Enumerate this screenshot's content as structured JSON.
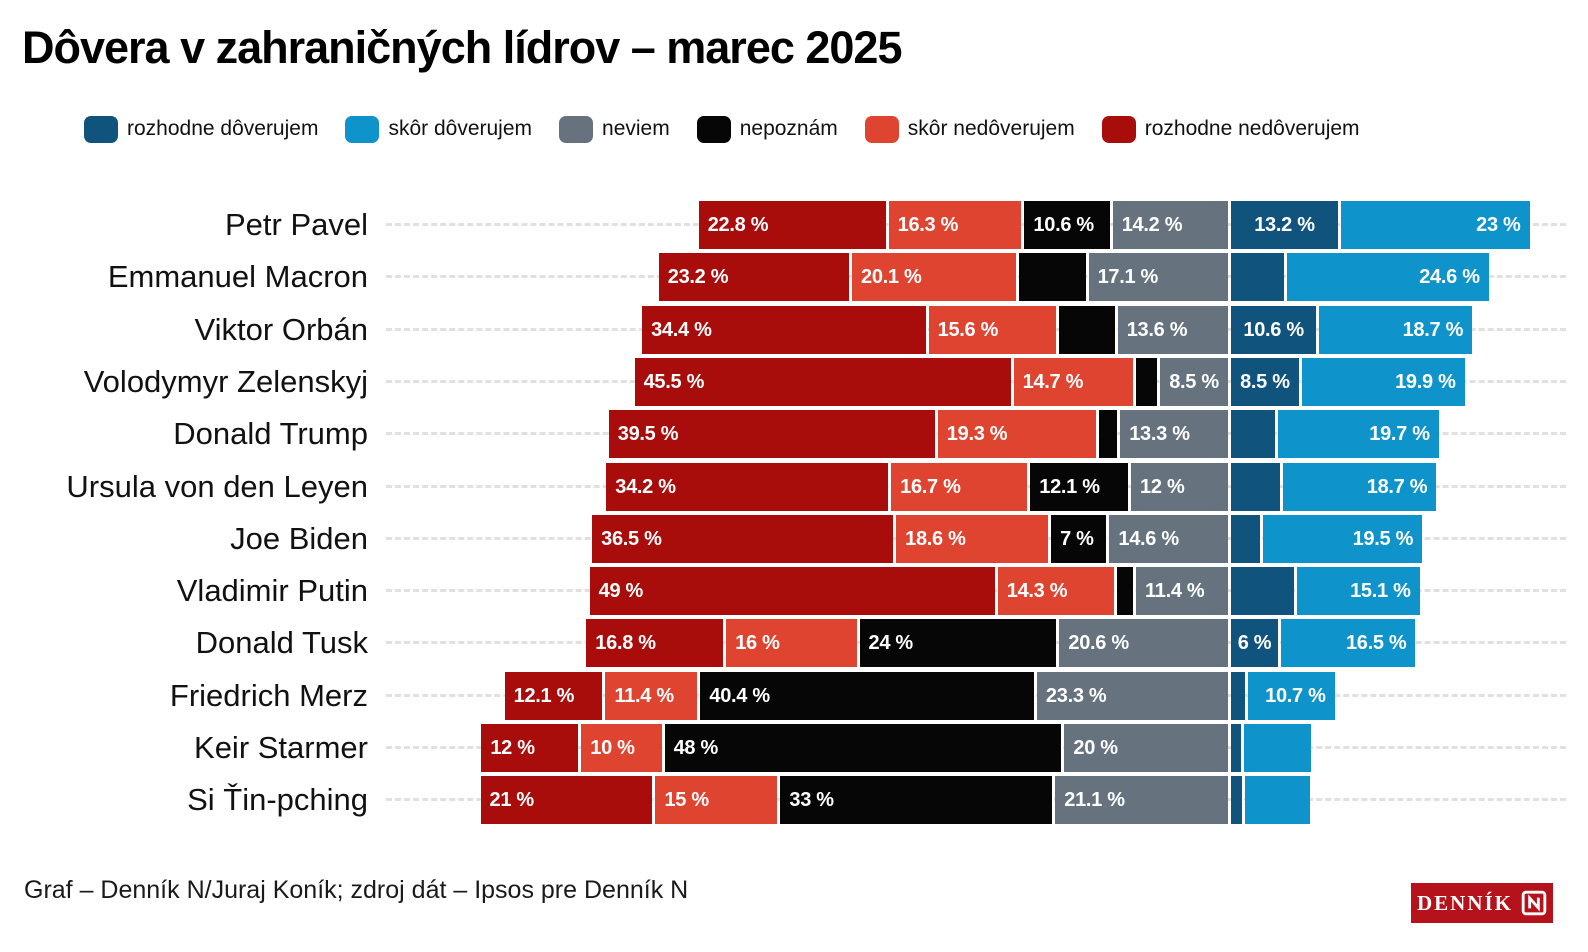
{
  "title": "Dôvera v zahraničných lídrov – marec 2025",
  "footer": {
    "credit": "Graf – Denník N/Juraj Koník; zdroj dát – Ipsos pre Denník N",
    "logo_text": "DENNÍK",
    "logo_bg": "#b5121b"
  },
  "chart_data": {
    "type": "bar",
    "variant": "horizontal-diverging-stacked",
    "unit": "%",
    "title": "Dôvera v zahraničných lídrov – marec 2025",
    "legend_position": "top",
    "pivot": "bars aligned on boundary between 'neviem' and 'rozhodne dôverujem'",
    "grid": "horizontal dashed row guides",
    "legend": [
      {
        "key": "rozhodne_doverujem",
        "label": "rozhodne dôverujem",
        "color": "#10537c"
      },
      {
        "key": "skor_doverujem",
        "label": "skôr dôverujem",
        "color": "#0e93cb"
      },
      {
        "key": "neviem",
        "label": "neviem",
        "color": "#66727e"
      },
      {
        "key": "nepoznam",
        "label": "nepoznám",
        "color": "#060606"
      },
      {
        "key": "skor_nedoverujem",
        "label": "skôr nedôverujem",
        "color": "#df4430"
      },
      {
        "key": "rozhodne_nedoverujem",
        "label": "rozhodne nedôverujem",
        "color": "#a80d0c"
      }
    ],
    "segment_order": [
      "rozhodne_nedoverujem",
      "skor_nedoverujem",
      "nepoznam",
      "neviem",
      "rozhodne_doverujem",
      "skor_doverujem"
    ],
    "rows": [
      {
        "name": "Petr Pavel",
        "segments": [
          {
            "key": "rozhodne_nedoverujem",
            "value": 22.8,
            "label": "22.8 %"
          },
          {
            "key": "skor_nedoverujem",
            "value": 16.3,
            "label": "16.3 %"
          },
          {
            "key": "nepoznam",
            "value": 10.6,
            "label": "10.6 %"
          },
          {
            "key": "neviem",
            "value": 14.2,
            "label": "14.2 %"
          },
          {
            "key": "rozhodne_doverujem",
            "value": 13.2,
            "label": "13.2 %"
          },
          {
            "key": "skor_doverujem",
            "value": 23,
            "label": "23 %"
          }
        ]
      },
      {
        "name": "Emmanuel Macron",
        "segments": [
          {
            "key": "rozhodne_nedoverujem",
            "value": 23.2,
            "label": "23.2 %"
          },
          {
            "key": "skor_nedoverujem",
            "value": 20.1,
            "label": "20.1 %"
          },
          {
            "key": "nepoznam",
            "value": 8.3,
            "label": "",
            "estimated": true
          },
          {
            "key": "neviem",
            "value": 17.1,
            "label": "17.1 %"
          },
          {
            "key": "rozhodne_doverujem",
            "value": 6.7,
            "label": "",
            "estimated": true
          },
          {
            "key": "skor_doverujem",
            "value": 24.6,
            "label": "24.6 %"
          }
        ]
      },
      {
        "name": "Viktor Orbán",
        "segments": [
          {
            "key": "rozhodne_nedoverujem",
            "value": 34.4,
            "label": "34.4 %"
          },
          {
            "key": "skor_nedoverujem",
            "value": 15.6,
            "label": "15.6 %"
          },
          {
            "key": "nepoznam",
            "value": 7.1,
            "label": "",
            "estimated": true
          },
          {
            "key": "neviem",
            "value": 13.6,
            "label": "13.6 %"
          },
          {
            "key": "rozhodne_doverujem",
            "value": 10.6,
            "label": "10.6 %"
          },
          {
            "key": "skor_doverujem",
            "value": 18.7,
            "label": "18.7 %"
          }
        ]
      },
      {
        "name": "Volodymyr Zelenskyj",
        "segments": [
          {
            "key": "rozhodne_nedoverujem",
            "value": 45.5,
            "label": "45.5 %"
          },
          {
            "key": "skor_nedoverujem",
            "value": 14.7,
            "label": "14.7 %"
          },
          {
            "key": "nepoznam",
            "value": 2.9,
            "label": "",
            "estimated": true
          },
          {
            "key": "neviem",
            "value": 8.5,
            "label": "8.5 %"
          },
          {
            "key": "rozhodne_doverujem",
            "value": 8.5,
            "label": "8.5 %"
          },
          {
            "key": "skor_doverujem",
            "value": 19.9,
            "label": "19.9 %"
          }
        ]
      },
      {
        "name": "Donald Trump",
        "segments": [
          {
            "key": "rozhodne_nedoverujem",
            "value": 39.5,
            "label": "39.5 %"
          },
          {
            "key": "skor_nedoverujem",
            "value": 19.3,
            "label": "19.3 %"
          },
          {
            "key": "nepoznam",
            "value": 2.6,
            "label": "",
            "estimated": true
          },
          {
            "key": "neviem",
            "value": 13.3,
            "label": "13.3 %"
          },
          {
            "key": "rozhodne_doverujem",
            "value": 5.6,
            "label": "",
            "estimated": true
          },
          {
            "key": "skor_doverujem",
            "value": 19.7,
            "label": "19.7 %"
          }
        ]
      },
      {
        "name": "Ursula von den Leyen",
        "segments": [
          {
            "key": "rozhodne_nedoverujem",
            "value": 34.2,
            "label": "34.2 %"
          },
          {
            "key": "skor_nedoverujem",
            "value": 16.7,
            "label": "16.7 %"
          },
          {
            "key": "nepoznam",
            "value": 12.1,
            "label": "12.1 %"
          },
          {
            "key": "neviem",
            "value": 12,
            "label": "12 %"
          },
          {
            "key": "rozhodne_doverujem",
            "value": 6.3,
            "label": "",
            "estimated": true
          },
          {
            "key": "skor_doverujem",
            "value": 18.7,
            "label": "18.7 %"
          }
        ]
      },
      {
        "name": "Joe Biden",
        "segments": [
          {
            "key": "rozhodne_nedoverujem",
            "value": 36.5,
            "label": "36.5 %"
          },
          {
            "key": "skor_nedoverujem",
            "value": 18.6,
            "label": "18.6 %"
          },
          {
            "key": "nepoznam",
            "value": 7,
            "label": "7 %"
          },
          {
            "key": "neviem",
            "value": 14.6,
            "label": "14.6 %"
          },
          {
            "key": "rozhodne_doverujem",
            "value": 3.8,
            "label": "",
            "estimated": true
          },
          {
            "key": "skor_doverujem",
            "value": 19.5,
            "label": "19.5 %"
          }
        ]
      },
      {
        "name": "Vladimir Putin",
        "segments": [
          {
            "key": "rozhodne_nedoverujem",
            "value": 49,
            "label": "49 %"
          },
          {
            "key": "skor_nedoverujem",
            "value": 14.3,
            "label": "14.3 %"
          },
          {
            "key": "nepoznam",
            "value": 2.3,
            "label": "",
            "estimated": true
          },
          {
            "key": "neviem",
            "value": 11.4,
            "label": "11.4 %"
          },
          {
            "key": "rozhodne_doverujem",
            "value": 7.9,
            "label": "",
            "estimated": true
          },
          {
            "key": "skor_doverujem",
            "value": 15.1,
            "label": "15.1 %"
          }
        ]
      },
      {
        "name": "Donald Tusk",
        "segments": [
          {
            "key": "rozhodne_nedoverujem",
            "value": 16.8,
            "label": "16.8 %"
          },
          {
            "key": "skor_nedoverujem",
            "value": 16,
            "label": "16 %"
          },
          {
            "key": "nepoznam",
            "value": 24,
            "label": "24 %"
          },
          {
            "key": "neviem",
            "value": 20.6,
            "label": "20.6 %"
          },
          {
            "key": "rozhodne_doverujem",
            "value": 6,
            "label": "6 %"
          },
          {
            "key": "skor_doverujem",
            "value": 16.5,
            "label": "16.5 %"
          }
        ]
      },
      {
        "name": "Friedrich Merz",
        "segments": [
          {
            "key": "rozhodne_nedoverujem",
            "value": 12.1,
            "label": "12.1 %"
          },
          {
            "key": "skor_nedoverujem",
            "value": 11.4,
            "label": "11.4 %"
          },
          {
            "key": "nepoznam",
            "value": 40.4,
            "label": "40.4 %"
          },
          {
            "key": "neviem",
            "value": 23.3,
            "label": "23.3 %"
          },
          {
            "key": "rozhodne_doverujem",
            "value": 2.1,
            "label": "",
            "estimated": true
          },
          {
            "key": "skor_doverujem",
            "value": 10.7,
            "label": "10.7 %"
          }
        ]
      },
      {
        "name": "Keir Starmer",
        "segments": [
          {
            "key": "rozhodne_nedoverujem",
            "value": 12,
            "label": "12 %"
          },
          {
            "key": "skor_nedoverujem",
            "value": 10,
            "label": "10 %"
          },
          {
            "key": "nepoznam",
            "value": 48,
            "label": "48 %"
          },
          {
            "key": "neviem",
            "value": 20,
            "label": "20 %"
          },
          {
            "key": "rozhodne_doverujem",
            "value": 1.6,
            "label": "",
            "estimated": true
          },
          {
            "key": "skor_doverujem",
            "value": 8.4,
            "label": "",
            "estimated": true
          }
        ]
      },
      {
        "name": "Si Ťin-pching",
        "segments": [
          {
            "key": "rozhodne_nedoverujem",
            "value": 21,
            "label": "21 %"
          },
          {
            "key": "skor_nedoverujem",
            "value": 15,
            "label": "15 %"
          },
          {
            "key": "nepoznam",
            "value": 33,
            "label": "33 %"
          },
          {
            "key": "neviem",
            "value": 21.1,
            "label": "21.1 %"
          },
          {
            "key": "rozhodne_doverujem",
            "value": 1.7,
            "label": "",
            "estimated": true
          },
          {
            "key": "skor_doverujem",
            "value": 8.2,
            "label": "",
            "estimated": true
          }
        ]
      }
    ]
  }
}
